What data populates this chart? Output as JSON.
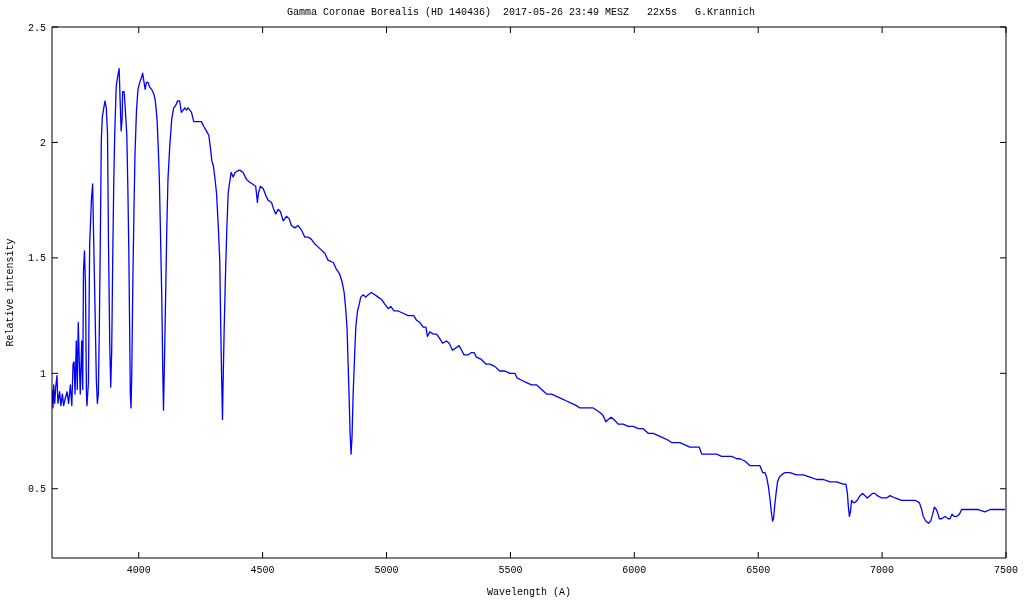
{
  "chart_data": {
    "type": "line",
    "title": "Gamma Coronae Borealis (HD 140436)  2017-05-26 23:49 MESZ   22x5s   G.Krannich",
    "xlabel": "Wavelength (A)",
    "ylabel": "Relative intensity",
    "xlim": [
      3650,
      7500
    ],
    "ylim": [
      0.2,
      2.5
    ],
    "xticks": [
      4000,
      4500,
      5000,
      5500,
      6000,
      6500,
      7000,
      7500
    ],
    "yticks": [
      0.5,
      1,
      1.5,
      2,
      2.5
    ],
    "series": [
      {
        "color": "#0000ff",
        "x": [
          3650,
          3654,
          3657,
          3661,
          3665,
          3670,
          3674,
          3681,
          3686,
          3692,
          3697,
          3703,
          3711,
          3717,
          3724,
          3730,
          3735,
          3739,
          3743,
          3748,
          3752,
          3756,
          3760,
          3764,
          3770,
          3774,
          3777,
          3781,
          3785,
          3789,
          3791,
          3797,
          3802,
          3809,
          3814,
          3818,
          3824,
          3829,
          3833,
          3837,
          3841,
          3845,
          3849,
          3853,
          3859,
          3864,
          3869,
          3874,
          3878,
          3883,
          3887,
          3891,
          3895,
          3899,
          3903,
          3909,
          3914,
          3921,
          3925,
          3929,
          3933,
          3935,
          3941,
          3946,
          3952,
          3956,
          3960,
          3964,
          3966,
          3969,
          3972,
          3976,
          3981,
          3985,
          3991,
          3997,
          4004,
          4011,
          4016,
          4020,
          4026,
          4031,
          4038,
          4044,
          4052,
          4061,
          4067,
          4074,
          4079,
          4083,
          4087,
          4093,
          4097,
          4100,
          4104,
          4109,
          4113,
          4118,
          4125,
          4133,
          4141,
          4149,
          4157,
          4165,
          4172,
          4179,
          4186,
          4192,
          4199,
          4206,
          4213,
          4222,
          4233,
          4244,
          4253,
          4262,
          4273,
          4283,
          4289,
          4295,
          4301,
          4307,
          4314,
          4320,
          4327,
          4331,
          4335,
          4338,
          4340,
          4345,
          4350,
          4355,
          4361,
          4366,
          4373,
          4381,
          4389,
          4405,
          4408,
          4421,
          4435,
          4445,
          4459,
          4472,
          4479,
          4483,
          4491,
          4502,
          4513,
          4522,
          4536,
          4545,
          4553,
          4563,
          4572,
          4583,
          4596,
          4607,
          4616,
          4630,
          4643,
          4657,
          4670,
          4684,
          4697,
          4711,
          4731,
          4751,
          4764,
          4785,
          4798,
          4811,
          4822,
          4829,
          4836,
          4841,
          4845,
          4849,
          4853,
          4857,
          4861,
          4865,
          4871,
          4876,
          4883,
          4890,
          4896,
          4906,
          4916,
          4926,
          4939,
          4953,
          4966,
          4980,
          4993,
          5007,
          5017,
          5030,
          5047,
          5067,
          5087,
          5101,
          5110,
          5121,
          5135,
          5148,
          5159,
          5165,
          5175,
          5188,
          5202,
          5215,
          5226,
          5242,
          5253,
          5266,
          5280,
          5293,
          5303,
          5313,
          5330,
          5343,
          5353,
          5363,
          5383,
          5401,
          5417,
          5437,
          5457,
          5478,
          5498,
          5518,
          5527,
          5545,
          5565,
          5585,
          5605,
          5626,
          5646,
          5666,
          5686,
          5706,
          5727,
          5747,
          5767,
          5780,
          5807,
          5834,
          5848,
          5861,
          5872,
          5877,
          5885,
          5895,
          5906,
          5918,
          5935,
          5955,
          5975,
          5996,
          6016,
          6036,
          6056,
          6076,
          6097,
          6117,
          6137,
          6150,
          6164,
          6184,
          6204,
          6224,
          6238,
          6262,
          6272,
          6285,
          6305,
          6332,
          6352,
          6373,
          6393,
          6413,
          6426,
          6446,
          6467,
          6487,
          6507,
          6518,
          6527,
          6534,
          6541,
          6547,
          6553,
          6558,
          6562,
          6566,
          6572,
          6578,
          6585,
          6594,
          6608,
          6628,
          6655,
          6682,
          6709,
          6736,
          6763,
          6790,
          6816,
          6843,
          6854,
          6860,
          6864,
          6868,
          6872,
          6877,
          6884,
          6890,
          6900,
          6911,
          6921,
          6931,
          6940,
          6951,
          6962,
          6971,
          6981,
          6998,
          7018,
          7032,
          7052,
          7079,
          7106,
          7133,
          7150,
          7160,
          7166,
          7176,
          7187,
          7196,
          7204,
          7211,
          7219,
          7226,
          7231,
          7240,
          7254,
          7267,
          7274,
          7282,
          7290,
          7301,
          7312,
          7321,
          7341,
          7368,
          7388,
          7415,
          7436,
          7462,
          7483,
          7496
        ],
        "values": [
          0.93,
          0.85,
          0.95,
          0.87,
          0.94,
          0.99,
          0.87,
          0.92,
          0.86,
          0.91,
          0.86,
          0.89,
          0.92,
          0.87,
          0.95,
          0.86,
          1.04,
          1.05,
          0.91,
          1.14,
          0.93,
          1.22,
          1.06,
          0.91,
          1.14,
          0.93,
          1.44,
          1.53,
          1.39,
          0.91,
          0.86,
          0.96,
          1.56,
          1.75,
          1.82,
          1.59,
          1.26,
          0.97,
          0.87,
          0.91,
          1.2,
          1.58,
          2.01,
          2.11,
          2.15,
          2.18,
          2.15,
          2.04,
          1.56,
          1.13,
          0.94,
          1.1,
          1.49,
          1.81,
          2.03,
          2.24,
          2.28,
          2.32,
          2.18,
          2.05,
          2.1,
          2.22,
          2.22,
          2.14,
          2.03,
          1.81,
          1.53,
          1.13,
          0.91,
          0.85,
          1.0,
          1.38,
          1.72,
          1.95,
          2.14,
          2.23,
          2.26,
          2.28,
          2.3,
          2.27,
          2.23,
          2.26,
          2.26,
          2.24,
          2.23,
          2.21,
          2.18,
          2.1,
          1.97,
          1.85,
          1.65,
          1.33,
          1.01,
          0.84,
          1.06,
          1.36,
          1.61,
          1.84,
          1.98,
          2.1,
          2.15,
          2.16,
          2.18,
          2.18,
          2.13,
          2.14,
          2.15,
          2.14,
          2.15,
          2.14,
          2.13,
          2.09,
          2.09,
          2.09,
          2.09,
          2.07,
          2.05,
          2.03,
          1.98,
          1.92,
          1.9,
          1.85,
          1.78,
          1.66,
          1.49,
          1.2,
          0.96,
          0.8,
          0.93,
          1.2,
          1.42,
          1.61,
          1.78,
          1.82,
          1.87,
          1.85,
          1.87,
          1.88,
          1.88,
          1.87,
          1.84,
          1.83,
          1.82,
          1.81,
          1.74,
          1.78,
          1.81,
          1.8,
          1.77,
          1.75,
          1.74,
          1.71,
          1.69,
          1.71,
          1.7,
          1.66,
          1.68,
          1.67,
          1.64,
          1.63,
          1.64,
          1.62,
          1.59,
          1.59,
          1.58,
          1.56,
          1.54,
          1.52,
          1.49,
          1.48,
          1.45,
          1.43,
          1.39,
          1.35,
          1.27,
          1.19,
          1.04,
          0.9,
          0.74,
          0.65,
          0.73,
          0.9,
          1.07,
          1.2,
          1.27,
          1.3,
          1.33,
          1.34,
          1.33,
          1.34,
          1.35,
          1.34,
          1.33,
          1.32,
          1.3,
          1.28,
          1.29,
          1.27,
          1.27,
          1.26,
          1.25,
          1.25,
          1.25,
          1.23,
          1.22,
          1.2,
          1.2,
          1.16,
          1.18,
          1.17,
          1.17,
          1.15,
          1.13,
          1.14,
          1.13,
          1.1,
          1.11,
          1.12,
          1.1,
          1.08,
          1.08,
          1.09,
          1.09,
          1.07,
          1.06,
          1.04,
          1.04,
          1.03,
          1.01,
          1.01,
          1.0,
          1.0,
          0.98,
          0.97,
          0.96,
          0.95,
          0.95,
          0.93,
          0.91,
          0.91,
          0.9,
          0.89,
          0.88,
          0.87,
          0.86,
          0.85,
          0.85,
          0.85,
          0.84,
          0.83,
          0.82,
          0.81,
          0.79,
          0.8,
          0.81,
          0.8,
          0.78,
          0.78,
          0.77,
          0.77,
          0.76,
          0.76,
          0.74,
          0.74,
          0.73,
          0.72,
          0.71,
          0.7,
          0.7,
          0.7,
          0.69,
          0.68,
          0.68,
          0.68,
          0.65,
          0.65,
          0.65,
          0.65,
          0.64,
          0.64,
          0.64,
          0.63,
          0.63,
          0.62,
          0.6,
          0.6,
          0.6,
          0.57,
          0.57,
          0.55,
          0.51,
          0.46,
          0.4,
          0.36,
          0.37,
          0.42,
          0.48,
          0.53,
          0.55,
          0.56,
          0.57,
          0.57,
          0.56,
          0.56,
          0.55,
          0.54,
          0.54,
          0.53,
          0.53,
          0.52,
          0.52,
          0.48,
          0.42,
          0.38,
          0.4,
          0.45,
          0.44,
          0.44,
          0.45,
          0.47,
          0.48,
          0.47,
          0.46,
          0.47,
          0.48,
          0.48,
          0.47,
          0.46,
          0.46,
          0.47,
          0.46,
          0.45,
          0.45,
          0.45,
          0.44,
          0.41,
          0.38,
          0.36,
          0.35,
          0.36,
          0.39,
          0.42,
          0.41,
          0.39,
          0.37,
          0.37,
          0.38,
          0.37,
          0.37,
          0.39,
          0.38,
          0.38,
          0.39,
          0.41,
          0.41,
          0.41,
          0.41,
          0.4,
          0.41,
          0.41,
          0.41,
          0.41
        ]
      }
    ]
  }
}
